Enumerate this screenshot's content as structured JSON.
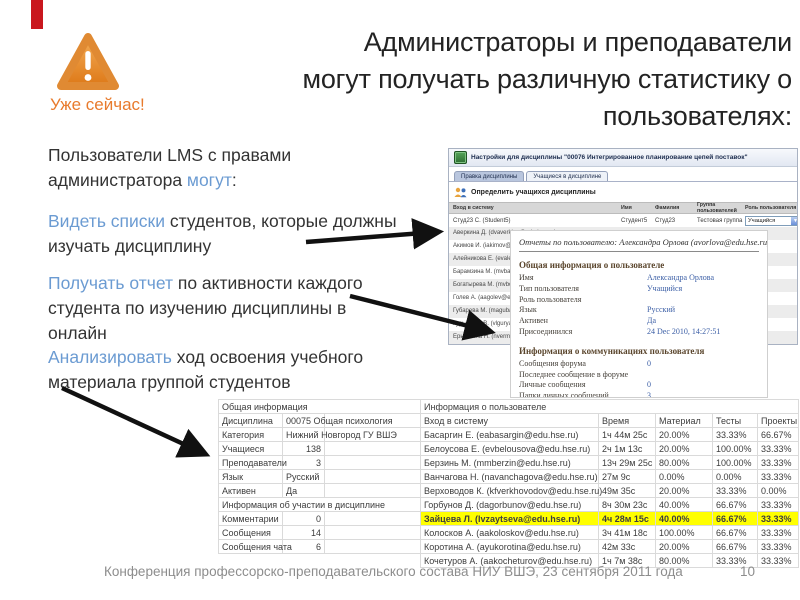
{
  "slide": {
    "alert_label": "Уже сейчас!",
    "title_lines": [
      "Администраторы и преподаватели",
      "могут получать различную статистику о",
      "пользователях:"
    ],
    "paragraphs": {
      "p1": {
        "pre": "Пользователи LMS с правами администратора ",
        "blue": "могут",
        "post": ":"
      },
      "p2": {
        "blue": "Видеть списки",
        "post": " студентов, которые должны изучать дисциплину"
      },
      "p3": {
        "blue": "Получать отчет",
        "post": " по активности каждого студента по изучению дисциплины в онлайн"
      },
      "p4": {
        "blue": "Анализировать",
        "post": " ход освоения учебного материала группой студентов"
      }
    },
    "accent_blue": "#6b9bd2",
    "accent_orange": "#e87b2d",
    "footer": {
      "text": "Конференция профессорско-преподавательского состава НИУ ВШЭ, 23 сентября 2011 года",
      "page": "10"
    }
  },
  "lms": {
    "window_title": "Настройки для дисциплины \"00076 Интегрированное планирование цепей поставок\"",
    "tabs": [
      "Правка дисциплины",
      "Учащиеся в дисциплине"
    ],
    "section_title": "Определить учащихся дисциплины",
    "columns": [
      "Вход в систему",
      "Имя",
      "Фамилия",
      "Группа пользователей",
      "Роль пользователя на дисциплине"
    ],
    "first_row": {
      "login": "Студ23 С. (Student5)",
      "name": "Студент5",
      "surname": "Студ23",
      "group": "Тестовая группа",
      "role": "Учащийся"
    },
    "students": [
      "Аверкина Д. (dvaverkina@edu.hse.ru)",
      "Акимов И. (iakimov@edu.hse.ru)",
      "Алейникова Е. (evaleynikova@edu.hse.ru)",
      "Барамзина М. (mvbaramzina@edu.hse.ru)",
      "Богатырева М. (mvbogatyreva@edu.hse.ru)",
      "Голев А. (aagolev@edu.hse.ru)",
      "Губарева М. (magubareva@edu.hse.ru)",
      "Гурьянова В. (vlguryanova@edu.hse.ru)",
      "Ерышкина Н. (nvermishina@edu.hse.ru)"
    ]
  },
  "report": {
    "title": "Отчеты по пользователю: Александра Орлова (avorlova@edu.hse.ru)",
    "sections": [
      {
        "title": "Общая информация о пользователе",
        "rows": [
          [
            "Имя",
            "Александра Орлова"
          ],
          [
            "Тип пользователя",
            "Учащийся"
          ],
          [
            "Роль пользователя",
            ""
          ],
          [
            "Язык",
            "Русский"
          ],
          [
            "Активен",
            "Да"
          ],
          [
            "Присоединился",
            "24 Dec 2010, 14:27:51"
          ]
        ]
      },
      {
        "title": "Информация о коммуникациях пользователя",
        "rows": [
          [
            "Сообщения форума",
            "0"
          ],
          [
            "Последнее сообщение в форуме",
            ""
          ],
          [
            "Личные сообщения",
            "0"
          ],
          [
            "Папки личных сообщений",
            "3"
          ]
        ]
      }
    ]
  },
  "stats": {
    "left": {
      "section1": "Общая информация",
      "rows1": [
        [
          "Дисциплина",
          "00075 Общая психология"
        ],
        [
          "Категория",
          "Нижний Новгород ГУ ВШЭ"
        ],
        [
          "Учащиеся",
          "138"
        ],
        [
          "Преподаватели",
          "3"
        ],
        [
          "Язык",
          "Русский"
        ],
        [
          "Активен",
          "Да"
        ]
      ],
      "section2": "Информация об участии в дисциплине",
      "rows2": [
        [
          "Комментарии",
          "0"
        ],
        [
          "Сообщения",
          "14"
        ],
        [
          "Сообщения чата",
          "6"
        ]
      ]
    },
    "right": {
      "section": "Информация о пользователе",
      "columns": [
        "Вход в систему",
        "Время",
        "Материал",
        "Тесты",
        "Проекты"
      ],
      "highlight_row": 6,
      "rows": [
        [
          "Басаргин Е. (eabasargin@edu.hse.ru)",
          "1ч 44м 25с",
          "20.00%",
          "33.33%",
          "66.67%"
        ],
        [
          "Белоусова Е. (evbelousova@edu.hse.ru)",
          "2ч 1м 13с",
          "20.00%",
          "100.00%",
          "33.33%"
        ],
        [
          "Берзинь М. (mmberzin@edu.hse.ru)",
          "13ч 29м 25с",
          "80.00%",
          "100.00%",
          "33.33%"
        ],
        [
          "Ванчагова Н. (navanchagova@edu.hse.ru)",
          "27м 9с",
          "0.00%",
          "0.00%",
          "33.33%"
        ],
        [
          "Верховодов К. (kfverkhovodov@edu.hse.ru)",
          "49м 35с",
          "20.00%",
          "33.33%",
          "0.00%"
        ],
        [
          "Горбунов Д. (dagorbunov@edu.hse.ru)",
          "8ч 30м 23с",
          "40.00%",
          "66.67%",
          "33.33%"
        ],
        [
          "Зайцева Л. (lvzaytseva@edu.hse.ru)",
          "4ч 28м 15с",
          "40.00%",
          "66.67%",
          "33.33%"
        ],
        [
          "Колосков А. (aakoloskov@edu.hse.ru)",
          "3ч 41м 18с",
          "100.00%",
          "66.67%",
          "33.33%"
        ],
        [
          "Коротина А. (ayukorotina@edu.hse.ru)",
          "42м 33с",
          "20.00%",
          "66.67%",
          "33.33%"
        ],
        [
          "Кочетуров А. (aakocheturov@edu.hse.ru)",
          "1ч 7м 38с",
          "80.00%",
          "33.33%",
          "33.33%"
        ]
      ]
    }
  }
}
